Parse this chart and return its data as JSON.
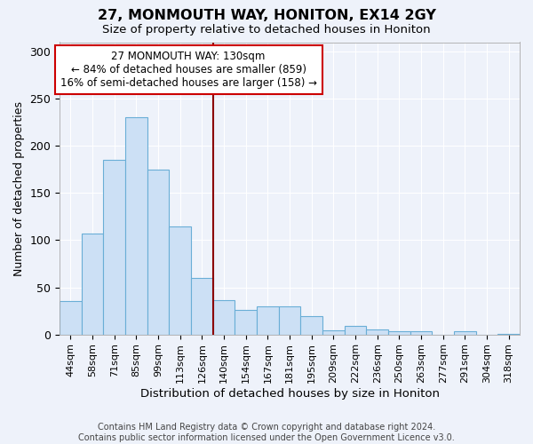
{
  "title": "27, MONMOUTH WAY, HONITON, EX14 2GY",
  "subtitle": "Size of property relative to detached houses in Honiton",
  "xlabel": "Distribution of detached houses by size in Honiton",
  "ylabel": "Number of detached properties",
  "categories": [
    "44sqm",
    "58sqm",
    "71sqm",
    "85sqm",
    "99sqm",
    "113sqm",
    "126sqm",
    "140sqm",
    "154sqm",
    "167sqm",
    "181sqm",
    "195sqm",
    "209sqm",
    "222sqm",
    "236sqm",
    "250sqm",
    "263sqm",
    "277sqm",
    "291sqm",
    "304sqm",
    "318sqm"
  ],
  "values": [
    35,
    107,
    185,
    230,
    175,
    115,
    60,
    36,
    26,
    30,
    30,
    19,
    4,
    9,
    5,
    3,
    3,
    0,
    3,
    0,
    1
  ],
  "bar_color": "#cce0f5",
  "bar_edge_color": "#6aaed6",
  "background_color": "#eef2fa",
  "grid_color": "#ffffff",
  "vline_x": 6.5,
  "vline_color": "#8b0000",
  "annotation_text": "27 MONMOUTH WAY: 130sqm\n← 84% of detached houses are smaller (859)\n16% of semi-detached houses are larger (158) →",
  "annotation_box_color": "#ffffff",
  "annotation_box_edge_color": "#cc0000",
  "footer": "Contains HM Land Registry data © Crown copyright and database right 2024.\nContains public sector information licensed under the Open Government Licence v3.0.",
  "ylim": [
    0,
    310
  ],
  "yticks": [
    0,
    50,
    100,
    150,
    200,
    250,
    300
  ]
}
